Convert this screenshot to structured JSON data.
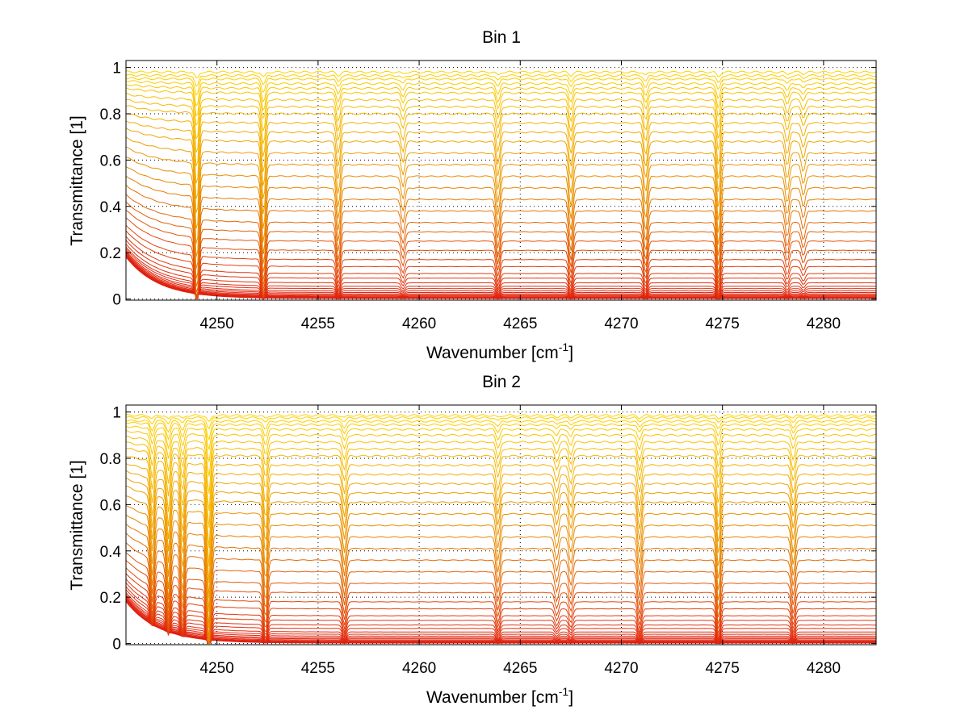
{
  "chart_data": [
    {
      "type": "line",
      "title": "Bin 1",
      "xlabel": "Wavenumber [cm",
      "xlabel_sup": "-1",
      "xlabel_end": "]",
      "ylabel": "Transmittance [1]",
      "xlim": [
        4245.5,
        4282.6
      ],
      "ylim": [
        -0.005,
        1.03
      ],
      "xticks": [
        4250,
        4255,
        4260,
        4265,
        4270,
        4275,
        4280
      ],
      "yticks": [
        0,
        0.2,
        0.4,
        0.6,
        0.8,
        1
      ],
      "ytick_labels": [
        "0",
        "0.2",
        "0.4",
        "0.6",
        "0.8",
        "1"
      ],
      "grid": true,
      "series_count": 40,
      "baseline_levels": [
        0.98,
        0.965,
        0.95,
        0.93,
        0.91,
        0.89,
        0.86,
        0.83,
        0.8,
        0.76,
        0.72,
        0.68,
        0.63,
        0.58,
        0.53,
        0.48,
        0.43,
        0.38,
        0.33,
        0.29,
        0.25,
        0.21,
        0.17,
        0.14,
        0.11,
        0.09,
        0.07,
        0.055,
        0.045,
        0.035,
        0.028,
        0.022,
        0.017,
        0.013,
        0.01,
        0.008,
        0.006,
        0.004,
        0.003,
        0.002
      ],
      "absorption_lines": [
        {
          "x": 4249.0,
          "depth": 0.45
        },
        {
          "x": 4252.3,
          "depth": 0.35
        },
        {
          "x": 4256.0,
          "depth": 0.22
        },
        {
          "x": 4259.2,
          "depth": 0.12
        },
        {
          "x": 4263.9,
          "depth": 0.2
        },
        {
          "x": 4267.5,
          "depth": 0.22
        },
        {
          "x": 4271.2,
          "depth": 0.22
        },
        {
          "x": 4274.8,
          "depth": 0.3
        },
        {
          "x": 4278.2,
          "depth": 0.14
        },
        {
          "x": 4279.0,
          "depth": 0.1
        }
      ],
      "colors": {
        "high": "#ffd400",
        "mid": "#e88a00",
        "low": "#e02010"
      }
    },
    {
      "type": "line",
      "title": "Bin 2",
      "xlabel": "Wavenumber [cm",
      "xlabel_sup": "-1",
      "xlabel_end": "]",
      "ylabel": "Transmittance [1]",
      "xlim": [
        4245.5,
        4282.6
      ],
      "ylim": [
        -0.005,
        1.03
      ],
      "xticks": [
        4250,
        4255,
        4260,
        4265,
        4270,
        4275,
        4280
      ],
      "yticks": [
        0,
        0.2,
        0.4,
        0.6,
        0.8,
        1
      ],
      "ytick_labels": [
        "0",
        "0.2",
        "0.4",
        "0.6",
        "0.8",
        "1"
      ],
      "grid": true,
      "series_count": 40,
      "baseline_levels": [
        0.985,
        0.975,
        0.96,
        0.945,
        0.925,
        0.9,
        0.87,
        0.84,
        0.81,
        0.77,
        0.73,
        0.69,
        0.65,
        0.61,
        0.56,
        0.51,
        0.46,
        0.41,
        0.36,
        0.31,
        0.26,
        0.22,
        0.18,
        0.15,
        0.12,
        0.1,
        0.08,
        0.065,
        0.05,
        0.04,
        0.032,
        0.025,
        0.02,
        0.015,
        0.011,
        0.008,
        0.006,
        0.004,
        0.003,
        0.002
      ],
      "absorption_lines": [
        {
          "x": 4246.8,
          "depth": 0.3
        },
        {
          "x": 4247.6,
          "depth": 0.35
        },
        {
          "x": 4248.3,
          "depth": 0.3
        },
        {
          "x": 4249.6,
          "depth": 0.6
        },
        {
          "x": 4252.4,
          "depth": 0.28
        },
        {
          "x": 4256.3,
          "depth": 0.2
        },
        {
          "x": 4263.9,
          "depth": 0.18
        },
        {
          "x": 4266.8,
          "depth": 0.12
        },
        {
          "x": 4267.5,
          "depth": 0.14
        },
        {
          "x": 4270.9,
          "depth": 0.2
        },
        {
          "x": 4274.8,
          "depth": 0.28
        },
        {
          "x": 4278.5,
          "depth": 0.2
        }
      ],
      "colors": {
        "high": "#ffd400",
        "mid": "#e88a00",
        "low": "#e02010"
      }
    }
  ]
}
